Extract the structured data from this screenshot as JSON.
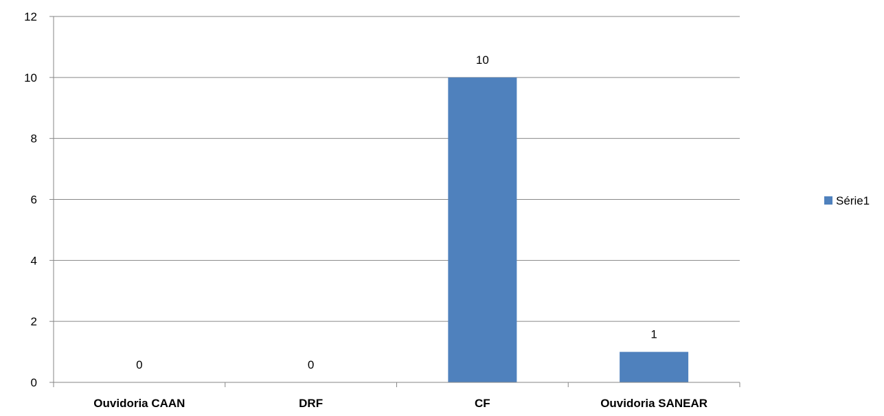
{
  "chart_data": {
    "type": "bar",
    "categories": [
      "Ouvidoria CAAN",
      "DRF",
      "CF",
      "Ouvidoria SANEAR"
    ],
    "series": [
      {
        "name": "Série1",
        "values": [
          0,
          0,
          10,
          1
        ],
        "color": "#4F81BD"
      }
    ],
    "data_labels": [
      "0",
      "0",
      "10",
      "1"
    ],
    "ylim": [
      0,
      12
    ],
    "y_ticks": [
      0,
      2,
      4,
      6,
      8,
      10,
      12
    ],
    "grid": true,
    "legend_position": "right",
    "title": "",
    "xlabel": "",
    "ylabel": ""
  }
}
